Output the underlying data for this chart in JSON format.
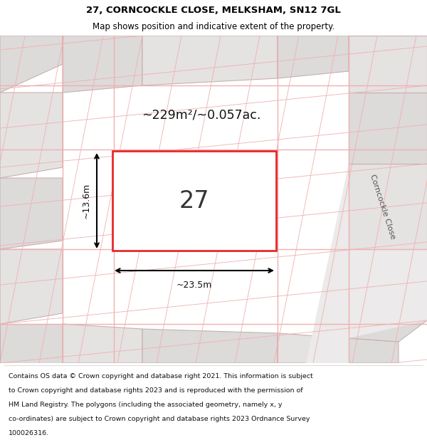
{
  "title_line1": "27, CORNCOCKLE CLOSE, MELKSHAM, SN12 7GL",
  "title_line2": "Map shows position and indicative extent of the property.",
  "footer_lines": [
    "Contains OS data © Crown copyright and database right 2021. This information is subject",
    "to Crown copyright and database rights 2023 and is reproduced with the permission of",
    "HM Land Registry. The polygons (including the associated geometry, namely x, y",
    "co-ordinates) are subject to Crown copyright and database rights 2023 Ordnance Survey",
    "100026316."
  ],
  "area_text": "~229m²/~0.057ac.",
  "width_label": "~23.5m",
  "height_label": "~13.6m",
  "plot_number": "27",
  "street_label": "Corncockle Close",
  "map_bg": "#f0eeee",
  "plot_fill": "#ffffff",
  "plot_edge_color": "#e8282a",
  "grid_line_color": "#f0b0b0",
  "header_bg": "#ffffff",
  "footer_bg": "#ffffff"
}
